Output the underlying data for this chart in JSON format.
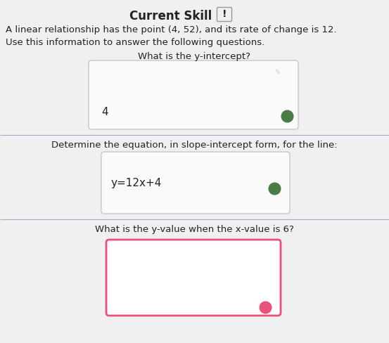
{
  "title": "Current Skill",
  "title_badge": "!",
  "intro_line1": "A linear relationship has the point (4, 52), and its rate of change is 12.",
  "intro_line2": "Use this information to answer the following questions.",
  "q1": "What is the y-intercept?",
  "q1_answer": "4",
  "q1_dot_color": "#4a7c45",
  "q2": "Determine the equation, in slope-intercept form, for the line:",
  "q2_answer": "y=12x+4",
  "q2_dot_color": "#4a7c45",
  "q3": "What is the y-value when the x-value is 6?",
  "q3_box_border": "#e8517a",
  "q3_dot_color": "#e8517a",
  "divider_color": "#aaaacc",
  "box_border_color": "#c8c8c8",
  "page_bg": "#f0f0f0",
  "box_bg": "#fafafa",
  "text_color": "#222222",
  "title_fontsize": 12,
  "body_fontsize": 9.5,
  "answer_fontsize": 11,
  "dot_size": 12
}
